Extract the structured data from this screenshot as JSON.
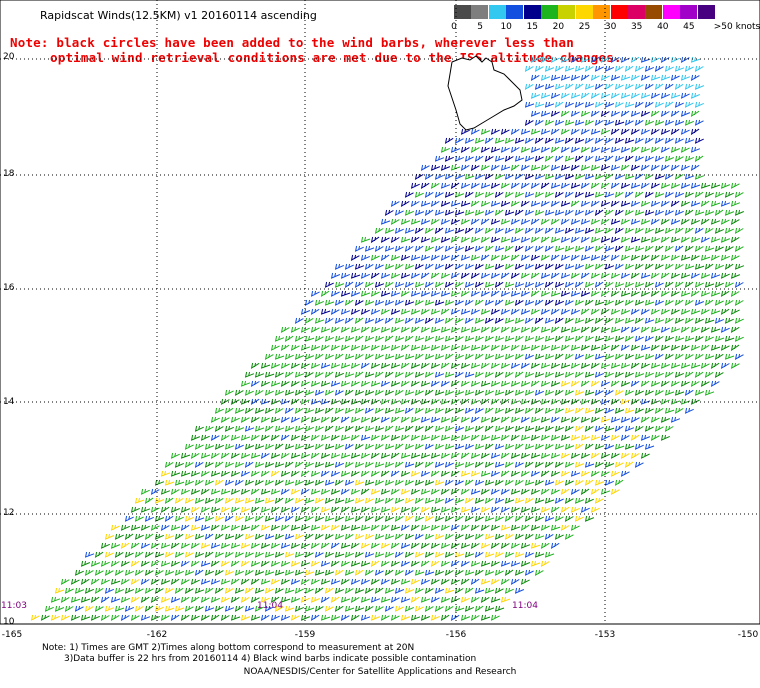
{
  "title": "Rapidscat Winds(12.5KM) v1 20160114 ascending",
  "note": {
    "line1": "Note: black circles have been added to the wind barbs, wherever less than",
    "line2": "optimal wind retrieval conditions are met due to the ISS altitude changes."
  },
  "color_scale": {
    "colors": [
      "#4a4a4a",
      "#7e7e7e",
      "#32c8f0",
      "#1450e0",
      "#00008c",
      "#1eb41e",
      "#c8d200",
      "#ffd700",
      "#ff9600",
      "#ff0000",
      "#dc0064",
      "#964b00",
      "#ff00ff",
      "#a000c8",
      "#460080"
    ],
    "labels": [
      "0",
      "5",
      "10",
      "15",
      "20",
      "25",
      "30",
      "35",
      "40",
      "45",
      ">50 knots"
    ]
  },
  "lat_labels": [
    "20",
    "18",
    "16",
    "14",
    "12",
    "10"
  ],
  "lon_labels": [
    "-165",
    "-162",
    "-159",
    "-156",
    "-153",
    "-150"
  ],
  "times": [
    "11:03",
    "11:04",
    "11:04"
  ],
  "footnote": {
    "line1": "Note: 1) Times are GMT 2)Times along bottom correspond to measurement at 20N",
    "line2": "3)Data buffer is 22 hrs from 20160114 4) Black wind barbs indicate possible contamination"
  },
  "credit": "NOAA/NESDIS/Center for Satellite Applications and Research",
  "chart_data": {
    "type": "map",
    "xlabel": "",
    "ylabel": "",
    "xlim": [
      -165,
      -150
    ],
    "ylim": [
      10,
      20.5
    ],
    "lat_ticks": [
      10,
      12,
      14,
      16,
      18,
      20
    ],
    "lon_ticks": [
      -165,
      -162,
      -159,
      -156,
      -153,
      -150
    ],
    "grid": true,
    "wind_unit": "knots",
    "land": "Island of Hawaii near 19-20N, -156 to -155",
    "swath": "diagonal ascending pass with wind barbs, mostly 15-25 knots from the northeast"
  }
}
